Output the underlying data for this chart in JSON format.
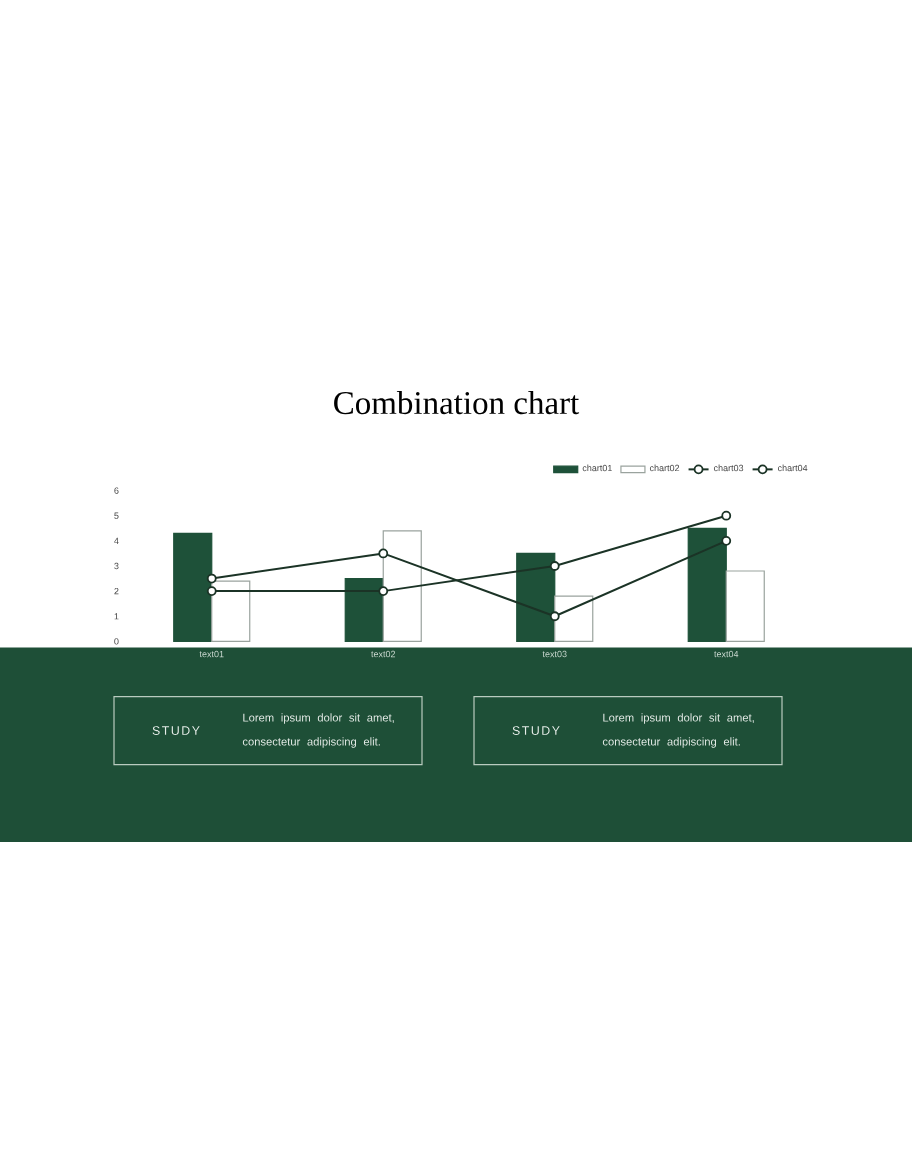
{
  "chart_data": {
    "type": "bar",
    "title": "Combination chart",
    "categories": [
      "text01",
      "text02",
      "text03",
      "text04"
    ],
    "series": [
      {
        "name": "chart01",
        "color": "#1e5139",
        "values": [
          4.3,
          2.5,
          3.5,
          4.5
        ]
      },
      {
        "name": "chart02",
        "color": "#ffffff",
        "values": [
          2.4,
          4.4,
          1.8,
          2.8
        ]
      },
      {
        "name": "chart03",
        "type": "line",
        "color": "#1b3326",
        "values": [
          2.5,
          3.5,
          1,
          4
        ]
      },
      {
        "name": "chart04",
        "type": "line",
        "color": "#1b3326",
        "values": [
          2,
          2,
          3,
          5
        ]
      }
    ],
    "ylim": [
      0,
      6
    ],
    "yticks": [
      0,
      1,
      2,
      3,
      4,
      5,
      6
    ],
    "legend": "top right",
    "marker": "circle",
    "annotations": [
      "STUDY",
      "Lorem ipsum dolor sit amet, consectetur adipiscing elit.",
      "STUDY",
      "Lorem ipsum dolor sit amet, consectetur adipiscing elit."
    ]
  }
}
